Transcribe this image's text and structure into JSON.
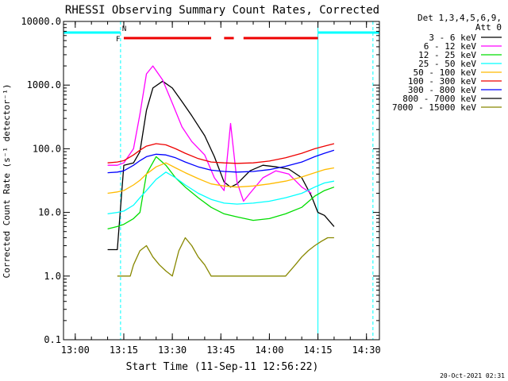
{
  "chart_data": {
    "type": "line",
    "title": "RHESSI Observing Summary Count Rates, Corrected",
    "xlabel": "Start Time (11-Sep-11 12:56:22)",
    "ylabel": "Corrected Count Rate (s⁻¹ detector⁻¹)",
    "yscale": "log",
    "ylim": [
      0.1,
      10000
    ],
    "xlim": [
      "12:56:22",
      "14:34:00"
    ],
    "x_ticks": [
      "13:00",
      "13:15",
      "13:30",
      "13:45",
      "14:00",
      "14:15",
      "14:30"
    ],
    "y_ticks": [
      "0.1",
      "1.0",
      "10.0",
      "100.0",
      "1000.0",
      "10000.0"
    ],
    "grid": false,
    "legend_position": "right",
    "legend_header": [
      "Det 1,3,4,5,6,9,",
      "Att 0"
    ],
    "series": [
      {
        "name": "3 - 6 keV",
        "color": "#000000",
        "x": [
          "13:10",
          "13:13",
          "13:15",
          "13:18",
          "13:20",
          "13:22",
          "13:24",
          "13:27",
          "13:30",
          "13:33",
          "13:36",
          "13:40",
          "13:43",
          "13:46",
          "13:48",
          "13:50",
          "13:54",
          "13:58",
          "14:02",
          "14:06",
          "14:10",
          "14:13",
          "14:15",
          "14:17",
          "14:20"
        ],
        "y": [
          2.6,
          2.6,
          55,
          60,
          90,
          400,
          900,
          1150,
          900,
          550,
          330,
          160,
          75,
          30,
          25,
          28,
          45,
          55,
          52,
          48,
          35,
          18,
          10,
          9,
          6
        ]
      },
      {
        "name": "6 - 12 keV",
        "color": "#ff00ff",
        "x": [
          "13:10",
          "13:13",
          "13:15",
          "13:18",
          "13:20",
          "13:22",
          "13:24",
          "13:27",
          "13:30",
          "13:33",
          "13:36",
          "13:40",
          "13:43",
          "13:46",
          "13:48",
          "13:50",
          "13:52",
          "13:54",
          "13:58",
          "14:02",
          "14:06",
          "14:10",
          "14:13"
        ],
        "y": [
          55,
          55,
          60,
          100,
          350,
          1500,
          2000,
          1200,
          520,
          220,
          130,
          80,
          35,
          22,
          250,
          30,
          15,
          20,
          35,
          45,
          40,
          25,
          20
        ]
      },
      {
        "name": "12 - 25 keV",
        "color": "#00dd00",
        "x": [
          "13:10",
          "13:13",
          "13:15",
          "13:18",
          "13:20",
          "13:22",
          "13:25",
          "13:28",
          "13:31",
          "13:34",
          "13:38",
          "13:42",
          "13:46",
          "13:50",
          "13:55",
          "14:00",
          "14:05",
          "14:10",
          "14:14",
          "14:17",
          "14:20"
        ],
        "y": [
          5.5,
          6,
          6.5,
          8,
          10,
          40,
          75,
          55,
          35,
          25,
          17,
          12,
          9.5,
          8.5,
          7.5,
          8,
          9.5,
          12,
          18,
          22,
          25
        ]
      },
      {
        "name": "25 - 50 keV",
        "color": "#00ffff",
        "x": [
          "13:10",
          "13:13",
          "13:15",
          "13:18",
          "13:20",
          "13:22",
          "13:25",
          "13:28",
          "13:31",
          "13:34",
          "13:38",
          "13:42",
          "13:46",
          "13:50",
          "13:55",
          "14:00",
          "14:05",
          "14:10",
          "14:14",
          "14:17",
          "14:20"
        ],
        "y": [
          9.5,
          10,
          10.5,
          13,
          17,
          22,
          33,
          43,
          35,
          27,
          20,
          16,
          14,
          13.5,
          14,
          15,
          17,
          20,
          25,
          29,
          31
        ]
      },
      {
        "name": "50 - 100 keV",
        "color": "#ffbb00",
        "x": [
          "13:10",
          "13:13",
          "13:15",
          "13:18",
          "13:20",
          "13:22",
          "13:25",
          "13:28",
          "13:31",
          "13:34",
          "13:38",
          "13:42",
          "13:46",
          "13:50",
          "13:55",
          "14:00",
          "14:05",
          "14:10",
          "14:14",
          "14:17",
          "14:20"
        ],
        "y": [
          20,
          21,
          22,
          27,
          32,
          40,
          52,
          60,
          50,
          42,
          34,
          28,
          26,
          25,
          26,
          28,
          31,
          36,
          42,
          47,
          50
        ]
      },
      {
        "name": "100 - 300 keV",
        "color": "#ee0000",
        "x": [
          "13:10",
          "13:13",
          "13:15",
          "13:18",
          "13:20",
          "13:22",
          "13:25",
          "13:28",
          "13:31",
          "13:34",
          "13:38",
          "13:42",
          "13:46",
          "13:50",
          "13:55",
          "14:00",
          "14:05",
          "14:10",
          "14:14",
          "14:17",
          "14:20"
        ],
        "y": [
          60,
          62,
          65,
          80,
          95,
          110,
          120,
          115,
          100,
          85,
          70,
          62,
          60,
          59,
          60,
          64,
          72,
          85,
          100,
          110,
          120
        ]
      },
      {
        "name": "300 - 800 keV",
        "color": "#0000ff",
        "x": [
          "13:10",
          "13:13",
          "13:15",
          "13:18",
          "13:20",
          "13:22",
          "13:25",
          "13:28",
          "13:31",
          "13:34",
          "13:38",
          "13:42",
          "13:46",
          "13:50",
          "13:55",
          "14:00",
          "14:05",
          "14:10",
          "14:14",
          "14:17",
          "14:20"
        ],
        "y": [
          42,
          43,
          45,
          55,
          65,
          75,
          82,
          80,
          72,
          62,
          52,
          46,
          44,
          43,
          44,
          47,
          53,
          62,
          75,
          85,
          95
        ]
      },
      {
        "name": "800 - 7000 keV",
        "color": "#000000",
        "x": [],
        "y": []
      },
      {
        "name": "7000 - 15000 keV",
        "color": "#888800",
        "x": [
          "13:13",
          "13:17",
          "13:18",
          "13:20",
          "13:22",
          "13:24",
          "13:26",
          "13:28",
          "13:30",
          "13:32",
          "13:34",
          "13:36",
          "13:38",
          "13:40",
          "13:42",
          "13:46",
          "13:50",
          "13:55",
          "14:00",
          "14:05",
          "14:08",
          "14:10",
          "14:12",
          "14:14",
          "14:16",
          "14:18",
          "14:20"
        ],
        "y": [
          1.0,
          1.0,
          1.5,
          2.5,
          3.0,
          2.0,
          1.5,
          1.2,
          1.0,
          2.5,
          4.0,
          3.0,
          2.0,
          1.5,
          1.0,
          1.0,
          1.0,
          1.0,
          1.0,
          1.0,
          1.5,
          2.0,
          2.5,
          3.0,
          3.5,
          4.0,
          4.0
        ]
      }
    ],
    "flag_bars": [
      {
        "label": "F",
        "color": "#ee0000",
        "text_color": "#ee0000",
        "segments": [
          [
            "13:15",
            "13:42"
          ],
          [
            "13:46",
            "13:49"
          ],
          [
            "13:52",
            "14:15"
          ]
        ]
      },
      {
        "label": "N",
        "color": "#00ffff",
        "text_color": "#00bbff",
        "segments": [
          [
            "12:56:22",
            "13:14"
          ],
          [
            "14:15",
            "14:34"
          ]
        ]
      }
    ],
    "vertical_markers": [
      {
        "x": "12:56:22",
        "color": "#00ffff",
        "style": "solid"
      },
      {
        "x": "13:14",
        "color": "#00ffff",
        "style": "dashed"
      },
      {
        "x": "14:15",
        "color": "#00ffff",
        "style": "solid"
      },
      {
        "x": "14:32",
        "color": "#00ffff",
        "style": "dashed"
      }
    ],
    "footer_date": "20-Oct-2021 02:31"
  }
}
